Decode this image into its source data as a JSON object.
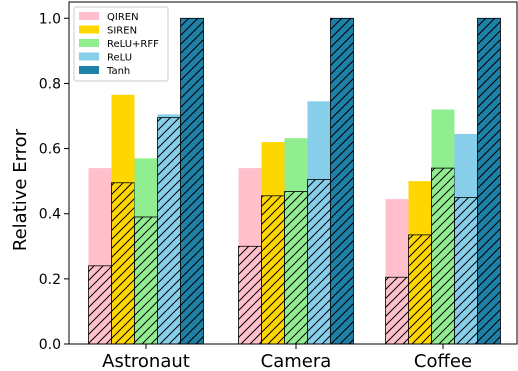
{
  "chart_data": {
    "type": "bar",
    "ylabel": "Relative Error",
    "ylim": [
      0.0,
      1.05
    ],
    "yticks": [
      0.0,
      0.2,
      0.4,
      0.6,
      0.8,
      1.0
    ],
    "ytick_labels": [
      "0.0",
      "0.2",
      "0.4",
      "0.6",
      "0.8",
      "1.0"
    ],
    "categories": [
      "Astronaut",
      "Camera",
      "Coffee"
    ],
    "legend_position": "top-left",
    "series": [
      {
        "name": "QIREN",
        "color": "#ffc0cb",
        "values": [
          0.54,
          0.54,
          0.445
        ],
        "hatched_values": [
          0.24,
          0.3,
          0.205
        ]
      },
      {
        "name": "SIREN",
        "color": "#ffd700",
        "values": [
          0.765,
          0.62,
          0.5
        ],
        "hatched_values": [
          0.495,
          0.455,
          0.335
        ]
      },
      {
        "name": "ReLU+RFF",
        "color": "#90ee90",
        "values": [
          0.57,
          0.632,
          0.72
        ],
        "hatched_values": [
          0.39,
          0.468,
          0.54
        ]
      },
      {
        "name": "ReLU",
        "color": "#87ceeb",
        "values": [
          0.705,
          0.745,
          0.645
        ],
        "hatched_values": [
          0.695,
          0.505,
          0.45
        ]
      },
      {
        "name": "Tanh",
        "color": "#1f80a8",
        "values": [
          1.0,
          1.0,
          1.0
        ],
        "hatched_values": [
          1.0,
          1.0,
          1.0
        ]
      }
    ]
  }
}
